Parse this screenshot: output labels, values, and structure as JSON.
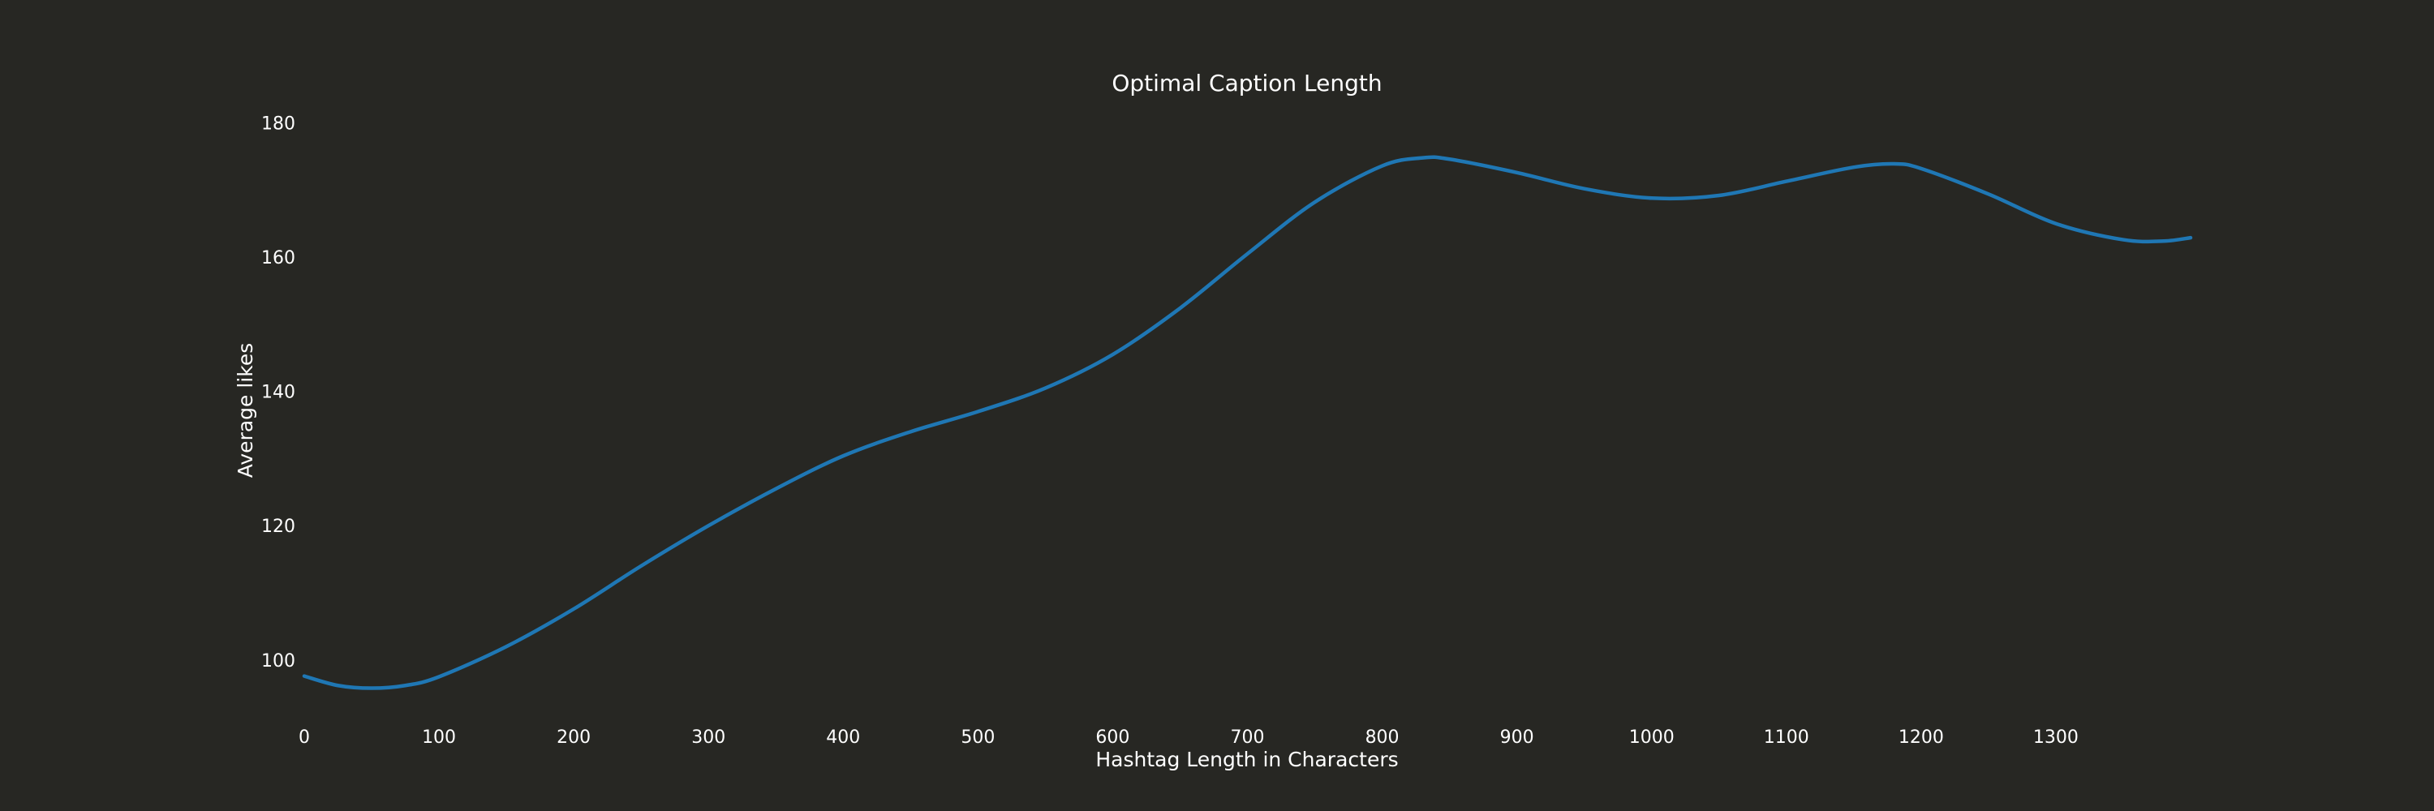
{
  "chart_data": {
    "type": "line",
    "title": "Optimal Caption Length",
    "xlabel": "Hashtag Length in Characters",
    "ylabel": "Average likes",
    "xlim": [
      0,
      1400
    ],
    "ylim": [
      92,
      182
    ],
    "x_ticks": [
      0,
      100,
      200,
      300,
      400,
      500,
      600,
      700,
      800,
      900,
      1000,
      1100,
      1200,
      1300
    ],
    "y_ticks": [
      100,
      120,
      140,
      160,
      180
    ],
    "grid": false,
    "legend": "none",
    "background_color": "#272723",
    "text_color": "#ffffff",
    "series": [
      {
        "color": "#1f77b4",
        "x": [
          0,
          25,
          50,
          75,
          100,
          150,
          200,
          250,
          300,
          350,
          400,
          450,
          500,
          550,
          600,
          650,
          700,
          750,
          800,
          830,
          850,
          900,
          950,
          1000,
          1050,
          1100,
          1150,
          1180,
          1200,
          1250,
          1300,
          1350,
          1380,
          1400
        ],
        "y": [
          97.6,
          96.2,
          95.8,
          96.2,
          97.5,
          102,
          107.6,
          114,
          120,
          125.5,
          130.4,
          134,
          137,
          140.5,
          145.5,
          152.4,
          160.5,
          168.2,
          173.6,
          174.8,
          174.6,
          172.6,
          170.2,
          168.8,
          169.2,
          171.3,
          173.4,
          173.9,
          173.2,
          169.4,
          165,
          162.6,
          162.4,
          162.9
        ]
      }
    ]
  }
}
